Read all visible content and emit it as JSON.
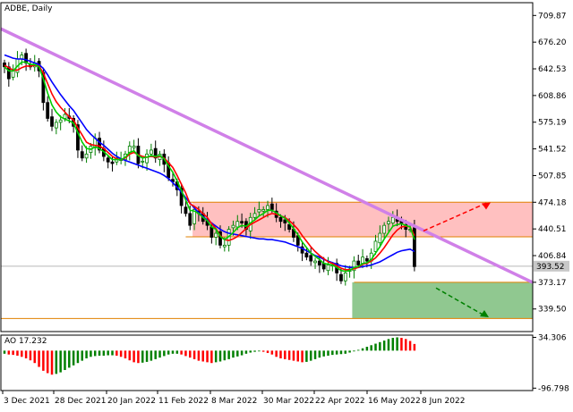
{
  "header": {
    "symbol_label": "ADBE, Daily",
    "ao_label": "AO 17.232"
  },
  "colors": {
    "bull_candle": "#008000",
    "bear_candle": "#000000",
    "ma_red": "#ff0000",
    "ma_blue": "#0000ff",
    "ma_green": "#00cc00",
    "trendline": "#d080e8",
    "resistance_zone": "#ffc0c0",
    "support_zone": "#90c890",
    "zone_line": "#e08000",
    "arrow_up": "#ff0000",
    "arrow_down": "#008000",
    "ao_up": "#008000",
    "ao_down": "#ff0000",
    "price_tag": "#c8c8c8"
  },
  "chart_data": [
    {
      "type": "candlestick",
      "title": "ADBE, Daily",
      "y_ticks": [
        "709.87",
        "676.20",
        "642.53",
        "608.86",
        "575.19",
        "541.52",
        "507.85",
        "474.18",
        "440.51",
        "406.84",
        "373.17",
        "339.50"
      ],
      "y_tick_values": [
        709.87,
        676.2,
        642.53,
        608.86,
        575.19,
        541.52,
        507.85,
        474.18,
        440.51,
        406.84,
        373.17,
        339.5
      ],
      "ylim": [
        311,
        726
      ],
      "x_ticks": [
        "3 Dec 2021",
        "28 Dec 2021",
        "20 Jan 2022",
        "11 Feb 2022",
        "8 Mar 2022",
        "30 Mar 2022",
        "22 Apr 2022",
        "16 May 2022",
        "8 Jun 2022"
      ],
      "current_price": "393.52",
      "current_price_value": 393.52,
      "levels": [
        {
          "name": "resistance-top",
          "value": 474.18
        },
        {
          "name": "resistance-bottom",
          "value": 430.5
        },
        {
          "name": "support-top",
          "value": 373.17
        },
        {
          "name": "support-bottom",
          "value": 327.5
        }
      ],
      "trendline": {
        "start": 693,
        "end": 373
      },
      "closes": [
        645,
        630,
        640,
        655,
        660,
        650,
        645,
        650,
        640,
        600,
        580,
        570,
        575,
        578,
        585,
        580,
        570,
        540,
        530,
        535,
        545,
        555,
        540,
        532,
        525,
        523,
        530,
        528,
        535,
        545,
        545,
        523,
        526,
        535,
        540,
        530,
        535,
        522,
        505,
        500,
        490,
        470,
        460,
        445,
        465,
        460,
        450,
        445,
        430,
        435,
        420,
        420,
        440,
        445,
        450,
        448,
        440,
        455,
        460,
        465,
        465,
        470,
        465,
        455,
        450,
        448,
        440,
        430,
        420,
        410,
        405,
        400,
        400,
        395,
        390,
        395,
        395,
        385,
        375,
        385,
        390,
        400,
        395,
        405,
        400,
        410,
        425,
        435,
        445,
        450,
        455,
        450,
        448,
        440,
        440,
        393
      ],
      "ma_red": [
        647,
        644,
        641,
        641,
        644,
        646,
        646,
        647,
        646,
        637,
        624,
        611,
        601,
        594,
        588,
        582,
        578,
        568,
        559,
        550,
        547,
        546,
        545,
        542,
        537,
        532,
        529,
        528,
        530,
        535,
        537,
        534,
        532,
        531,
        532,
        531,
        532,
        530,
        524,
        518,
        508,
        497,
        486,
        472,
        469,
        465,
        460,
        455,
        447,
        441,
        432,
        427,
        426,
        428,
        431,
        436,
        441,
        446,
        449,
        452,
        455,
        458,
        460,
        459,
        457,
        455,
        451,
        446,
        440,
        432,
        425,
        418,
        412,
        407,
        403,
        399,
        397,
        394,
        391,
        389,
        389,
        390,
        392,
        396,
        397,
        400,
        404,
        410,
        417,
        425,
        433,
        439,
        443,
        444,
        443,
        432
      ],
      "ma_blue": [
        660,
        658,
        656,
        655,
        655,
        654,
        652,
        650,
        648,
        643,
        635,
        626,
        618,
        610,
        603,
        596,
        590,
        582,
        574,
        566,
        560,
        555,
        550,
        546,
        541,
        536,
        532,
        529,
        527,
        525,
        523,
        521,
        519,
        517,
        515,
        513,
        511,
        508,
        504,
        499,
        493,
        487,
        480,
        473,
        467,
        461,
        456,
        452,
        448,
        444,
        440,
        437,
        435,
        434,
        433,
        432,
        431,
        430,
        429,
        428,
        428,
        427,
        427,
        426,
        425,
        424,
        422,
        420,
        418,
        416,
        413,
        410,
        407,
        405,
        402,
        400,
        398,
        396,
        394,
        393,
        392,
        392,
        392,
        393,
        394,
        395,
        397,
        399,
        402,
        405,
        408,
        411,
        413,
        414,
        415,
        412
      ],
      "ma_green": [
        645,
        640,
        640,
        646,
        651,
        651,
        648,
        648,
        645,
        630,
        612,
        597,
        588,
        582,
        579,
        577,
        574,
        562,
        550,
        542,
        541,
        544,
        542,
        538,
        533,
        528,
        528,
        528,
        531,
        537,
        539,
        533,
        530,
        531,
        533,
        532,
        533,
        529,
        520,
        512,
        501,
        489,
        477,
        464,
        463,
        460,
        455,
        451,
        443,
        440,
        431,
        427,
        431,
        436,
        442,
        445,
        444,
        448,
        452,
        457,
        460,
        464,
        464,
        461,
        457,
        454,
        448,
        441,
        433,
        424,
        417,
        410,
        406,
        402,
        397,
        396,
        395,
        392,
        388,
        387,
        388,
        392,
        393,
        397,
        398,
        402,
        410,
        418,
        428,
        436,
        444,
        446,
        447,
        445,
        443,
        427
      ]
    },
    {
      "type": "bar",
      "title": "AO 17.232",
      "y_ticks": [
        "34.306",
        "-96.798"
      ],
      "y_tick_values": [
        34.306,
        -96.798
      ],
      "ylim": [
        -103,
        40
      ],
      "values": [
        -8,
        -10,
        -11,
        -13,
        -16,
        -20,
        -25,
        -32,
        -42,
        -52,
        -58,
        -62,
        -60,
        -56,
        -50,
        -44,
        -38,
        -32,
        -26,
        -20,
        -16,
        -14,
        -13,
        -13,
        -12,
        -12,
        -13,
        -16,
        -20,
        -25,
        -30,
        -32,
        -31,
        -29,
        -26,
        -22,
        -18,
        -14,
        -10,
        -8,
        -8,
        -10,
        -14,
        -18,
        -22,
        -26,
        -28,
        -30,
        -32,
        -30,
        -28,
        -25,
        -22,
        -18,
        -15,
        -12,
        -8,
        -5,
        -3,
        -2,
        -3,
        -6,
        -10,
        -16,
        -20,
        -22,
        -24,
        -26,
        -28,
        -30,
        -29,
        -26,
        -22,
        -18,
        -15,
        -13,
        -11,
        -10,
        -9,
        -8,
        -5,
        -2,
        2,
        6,
        10,
        14,
        18,
        22,
        26,
        30,
        33,
        34.306,
        33,
        30,
        25,
        17.232
      ]
    }
  ]
}
